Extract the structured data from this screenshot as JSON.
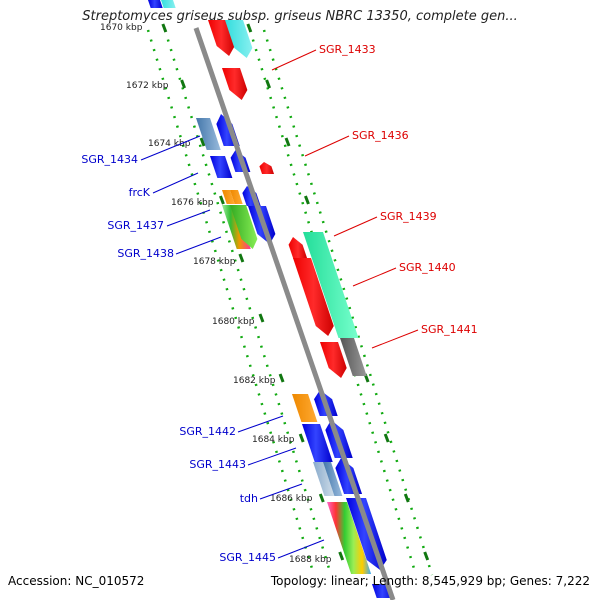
{
  "title": "Streptomyces griseus subsp. griseus NBRC 13350, complete gen...",
  "footer": {
    "accession": "Accession: NC_010572",
    "info": "Topology: linear; Length: 8,545,929 bp; Genes: 7,222"
  },
  "colors": {
    "backbone": "#8a8a8a",
    "left_label": "#0000cc",
    "right_label": "#dd0000",
    "tick": "#118811"
  },
  "kbp_ticks": [
    "1670 kbp",
    "1672 kbp",
    "1674 kbp",
    "1676 kbp",
    "1678 kbp",
    "1680 kbp",
    "1682 kbp",
    "1684 kbp",
    "1686 kbp",
    "1688 kbp"
  ],
  "left_genes": [
    "SGR_1434",
    "frcK",
    "SGR_1437",
    "SGR_1438",
    "SGR_1442",
    "SGR_1443",
    "tdh",
    "SGR_1445"
  ],
  "right_genes": [
    "SGR_1433",
    "SGR_1436",
    "SGR_1439",
    "SGR_1440",
    "SGR_1441"
  ]
}
